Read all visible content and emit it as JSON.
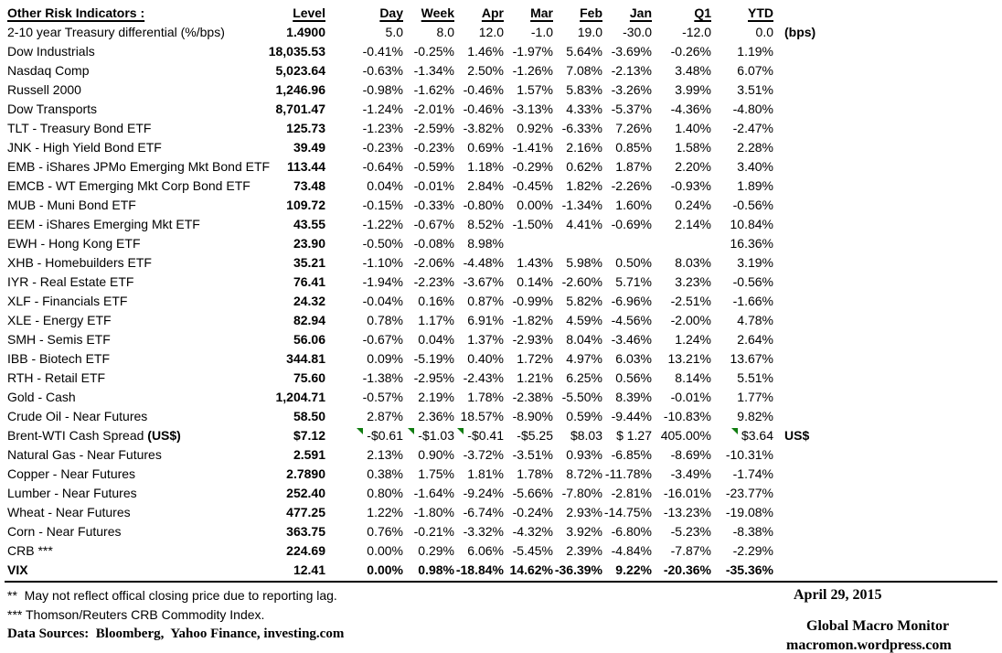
{
  "table": {
    "title": "Other Risk Indicators :",
    "columns": [
      "Level",
      "Day",
      "Week",
      "Apr",
      "Mar",
      "Feb",
      "Jan",
      "Q1",
      "YTD"
    ],
    "rows": [
      {
        "label": "2-10 year Treasury differential (%/bps)",
        "level": "1.4900",
        "values": [
          "5.0",
          "8.0",
          "12.0",
          "-1.0",
          "19.0",
          "-30.0",
          "-12.0",
          "0.0"
        ],
        "note": "(bps)"
      },
      {
        "label": "Dow Industrials",
        "level": "18,035.53",
        "values": [
          "-0.41%",
          "-0.25%",
          "1.46%",
          "-1.97%",
          "5.64%",
          "-3.69%",
          "-0.26%",
          "1.19%"
        ]
      },
      {
        "label": "Nasdaq Comp",
        "level": "5,023.64",
        "values": [
          "-0.63%",
          "-1.34%",
          "2.50%",
          "-1.26%",
          "7.08%",
          "-2.13%",
          "3.48%",
          "6.07%"
        ]
      },
      {
        "label": "Russell 2000",
        "level": "1,246.96",
        "values": [
          "-0.98%",
          "-1.62%",
          "-0.46%",
          "1.57%",
          "5.83%",
          "-3.26%",
          "3.99%",
          "3.51%"
        ]
      },
      {
        "label": "Dow Transports",
        "level": "8,701.47",
        "values": [
          "-1.24%",
          "-2.01%",
          "-0.46%",
          "-3.13%",
          "4.33%",
          "-5.37%",
          "-4.36%",
          "-4.80%"
        ]
      },
      {
        "label": "TLT - Treasury Bond ETF",
        "level": "125.73",
        "values": [
          "-1.23%",
          "-2.59%",
          "-3.82%",
          "0.92%",
          "-6.33%",
          "7.26%",
          "1.40%",
          "-2.47%"
        ]
      },
      {
        "label": "JNK - High Yield Bond ETF",
        "level": "39.49",
        "values": [
          "-0.23%",
          "-0.23%",
          "0.69%",
          "-1.41%",
          "2.16%",
          "0.85%",
          "1.58%",
          "2.28%"
        ]
      },
      {
        "label": "EMB - iShares JPMo Emerging Mkt Bond ETF",
        "level": "113.44",
        "values": [
          "-0.64%",
          "-0.59%",
          "1.18%",
          "-0.29%",
          "0.62%",
          "1.87%",
          "2.20%",
          "3.40%"
        ]
      },
      {
        "label": "EMCB - WT Emerging Mkt Corp Bond ETF",
        "level": "73.48",
        "values": [
          "0.04%",
          "-0.01%",
          "2.84%",
          "-0.45%",
          "1.82%",
          "-2.26%",
          "-0.93%",
          "1.89%"
        ]
      },
      {
        "label": "MUB - Muni Bond ETF",
        "level": "109.72",
        "values": [
          "-0.15%",
          "-0.33%",
          "-0.80%",
          "0.00%",
          "-1.34%",
          "1.60%",
          "0.24%",
          "-0.56%"
        ]
      },
      {
        "label": "EEM - iShares Emerging Mkt ETF",
        "level": "43.55",
        "values": [
          "-1.22%",
          "-0.67%",
          "8.52%",
          "-1.50%",
          "4.41%",
          "-0.69%",
          "2.14%",
          "10.84%"
        ]
      },
      {
        "label": "EWH - Hong Kong ETF",
        "level": "23.90",
        "values": [
          "-0.50%",
          "-0.08%",
          "8.98%",
          "",
          "",
          "",
          "",
          "16.36%"
        ]
      },
      {
        "label": "XHB - Homebuilders ETF",
        "level": "35.21",
        "values": [
          "-1.10%",
          "-2.06%",
          "-4.48%",
          "1.43%",
          "5.98%",
          "0.50%",
          "8.03%",
          "3.19%"
        ]
      },
      {
        "label": "IYR - Real Estate ETF",
        "level": "76.41",
        "values": [
          "-1.94%",
          "-2.23%",
          "-3.67%",
          "0.14%",
          "-2.60%",
          "5.71%",
          "3.23%",
          "-0.56%"
        ]
      },
      {
        "label": "XLF - Financials ETF",
        "level": "24.32",
        "values": [
          "-0.04%",
          "0.16%",
          "0.87%",
          "-0.99%",
          "5.82%",
          "-6.96%",
          "-2.51%",
          "-1.66%"
        ]
      },
      {
        "label": "XLE - Energy ETF",
        "level": "82.94",
        "values": [
          "0.78%",
          "1.17%",
          "6.91%",
          "-1.82%",
          "4.59%",
          "-4.56%",
          "-2.00%",
          "4.78%"
        ]
      },
      {
        "label": "SMH - Semis ETF",
        "level": "56.06",
        "values": [
          "-0.67%",
          "0.04%",
          "1.37%",
          "-2.93%",
          "8.04%",
          "-3.46%",
          "1.24%",
          "2.64%"
        ]
      },
      {
        "label": "IBB - Biotech ETF",
        "level": "344.81",
        "values": [
          "0.09%",
          "-5.19%",
          "0.40%",
          "1.72%",
          "4.97%",
          "6.03%",
          "13.21%",
          "13.67%"
        ]
      },
      {
        "label": "RTH - Retail ETF",
        "level": "75.60",
        "values": [
          "-1.38%",
          "-2.95%",
          "-2.43%",
          "1.21%",
          "6.25%",
          "0.56%",
          "8.14%",
          "5.51%"
        ]
      },
      {
        "label": "Gold - Cash",
        "level": "1,204.71",
        "values": [
          "-0.57%",
          "2.19%",
          "1.78%",
          "-2.38%",
          "-5.50%",
          "8.39%",
          "-0.01%",
          "1.77%"
        ]
      },
      {
        "label": "Crude Oil - Near Futures",
        "level": "58.50",
        "values": [
          "2.87%",
          "2.36%",
          "18.57%",
          "-8.90%",
          "0.59%",
          "-9.44%",
          "-10.83%",
          "9.82%"
        ]
      },
      {
        "label": "Brent-WTI Cash Spread ",
        "label_bold": "(US$)",
        "level": "$7.12",
        "values": [
          "-$0.61",
          "-$1.03",
          "-$0.41",
          "-$5.25",
          "$8.03",
          "$ 1.27",
          "405.00%",
          "$3.64"
        ],
        "note": "US$",
        "markers": [
          0,
          1,
          2,
          7
        ]
      },
      {
        "label": "Natural Gas - Near Futures",
        "level": "2.591",
        "values": [
          "2.13%",
          "0.90%",
          "-3.72%",
          "-3.51%",
          "0.93%",
          "-6.85%",
          "-8.69%",
          "-10.31%"
        ]
      },
      {
        "label": "Copper - Near Futures",
        "level": "2.7890",
        "values": [
          "0.38%",
          "1.75%",
          "1.81%",
          "1.78%",
          "8.72%",
          "-11.78%",
          "-3.49%",
          "-1.74%"
        ]
      },
      {
        "label": "Lumber - Near Futures",
        "level": "252.40",
        "values": [
          "0.80%",
          "-1.64%",
          "-9.24%",
          "-5.66%",
          "-7.80%",
          "-2.81%",
          "-16.01%",
          "-23.77%"
        ]
      },
      {
        "label": "Wheat - Near Futures",
        "level": "477.25",
        "values": [
          "1.22%",
          "-1.80%",
          "-6.74%",
          "-0.24%",
          "2.93%",
          "-14.75%",
          "-13.23%",
          "-19.08%"
        ]
      },
      {
        "label": "Corn - Near Futures",
        "level": "363.75",
        "values": [
          "0.76%",
          "-0.21%",
          "-3.32%",
          "-4.32%",
          "3.92%",
          "-6.80%",
          "-5.23%",
          "-8.38%"
        ]
      },
      {
        "label": "CRB ***",
        "level": "224.69",
        "values": [
          "0.00%",
          "0.29%",
          "6.06%",
          "-5.45%",
          "2.39%",
          "-4.84%",
          "-7.87%",
          "-2.29%"
        ]
      },
      {
        "label": "VIX",
        "level": "12.41",
        "values": [
          "0.00%",
          "0.98%",
          "-18.84%",
          "14.62%",
          "-36.39%",
          "9.22%",
          "-20.36%",
          "-35.36%"
        ],
        "bold": true
      }
    ]
  },
  "footnotes": [
    "**  May not reflect offical closing price due to reporting lag.",
    "*** Thomson/Reuters CRB Commodity Index.",
    "Data Sources:  Bloomberg,  Yahoo Finance, investing.com"
  ],
  "footer_right": {
    "date": "April 29, 2015",
    "source_name": "Global Macro Monitor",
    "source_url": "macromon.wordpress.com"
  },
  "colors": {
    "text": "#000000",
    "background": "#ffffff",
    "marker_green": "#107c10"
  }
}
